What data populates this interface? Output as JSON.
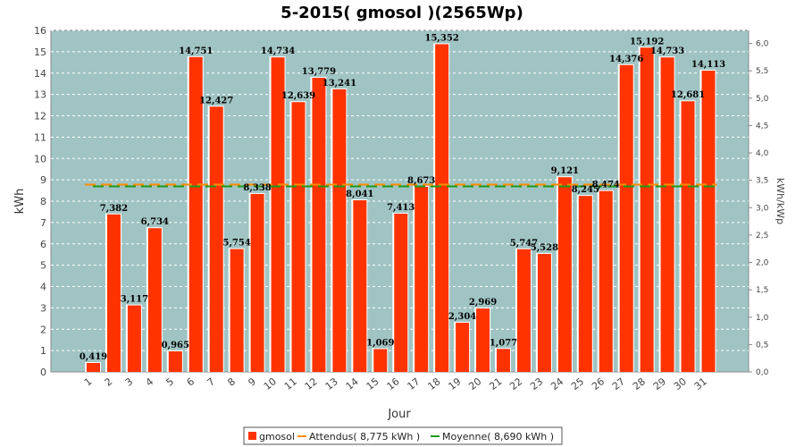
{
  "chart_data": {
    "type": "bar",
    "title": "5-2015( gmosol )(2565Wp)",
    "xlabel": "Jour",
    "ylabel": "kWh",
    "ylabel_right": "kWh/kWp",
    "ylim": [
      0,
      16
    ],
    "ylim_right": [
      0,
      6.238
    ],
    "yticks": [
      "0",
      "1",
      "2",
      "3",
      "4",
      "5",
      "6",
      "7",
      "8",
      "9",
      "10",
      "11",
      "12",
      "13",
      "14",
      "15",
      "16"
    ],
    "yticks_right": [
      "0,0",
      "0,5",
      "1,0",
      "1,5",
      "2,0",
      "2,5",
      "3,0",
      "3,5",
      "4,0",
      "4,5",
      "5,0",
      "5,5",
      "6,0"
    ],
    "categories": [
      "1",
      "2",
      "3",
      "4",
      "5",
      "6",
      "7",
      "8",
      "9",
      "10",
      "11",
      "12",
      "13",
      "14",
      "15",
      "16",
      "17",
      "18",
      "19",
      "20",
      "21",
      "22",
      "23",
      "24",
      "25",
      "26",
      "27",
      "28",
      "29",
      "30",
      "31"
    ],
    "series": [
      {
        "name": "gmosol",
        "color": "#ff3300",
        "values": [
          0.419,
          7.382,
          3.117,
          6.734,
          0.965,
          14.751,
          12.427,
          5.754,
          8.338,
          14.734,
          12.639,
          13.779,
          13.241,
          8.041,
          1.069,
          7.413,
          8.673,
          15.352,
          2.304,
          2.969,
          1.077,
          5.747,
          5.528,
          9.121,
          8.245,
          8.474,
          14.376,
          15.192,
          14.733,
          12.681,
          14.113
        ],
        "labels": [
          "0,419",
          "7,382",
          "3,117",
          "6,734",
          "0,965",
          "14,751",
          "12,427",
          "5,754",
          "8,338",
          "14,734",
          "12,639",
          "13,779",
          "13,241",
          "8,041",
          "1,069",
          "7,413",
          "8,673",
          "15,352",
          "2,304",
          "2,969",
          "1,077",
          "5,747",
          "5,528",
          "9,121",
          "8,245",
          "8,474",
          "14,376",
          "15,192",
          "14,733",
          "12,681",
          "14,113"
        ]
      }
    ],
    "reference_lines": [
      {
        "name": "Attendus( 8,775 kWh )",
        "value": 8.775,
        "color": "#ff8c00"
      },
      {
        "name": "Moyenne( 8,690 kWh )",
        "value": 8.69,
        "color": "#1a9a1a"
      }
    ],
    "legend": [
      {
        "label": "gmosol",
        "kind": "box",
        "color": "#ff3300"
      },
      {
        "label": "Attendus( 8,775 kWh )",
        "kind": "line",
        "color": "#ff8c00"
      },
      {
        "label": "Moyenne( 8,690 kWh )",
        "kind": "line",
        "color": "#1a9a1a"
      }
    ],
    "legend_position": "bottom-center",
    "grid": true,
    "plot_background": "#a0c4c4"
  }
}
